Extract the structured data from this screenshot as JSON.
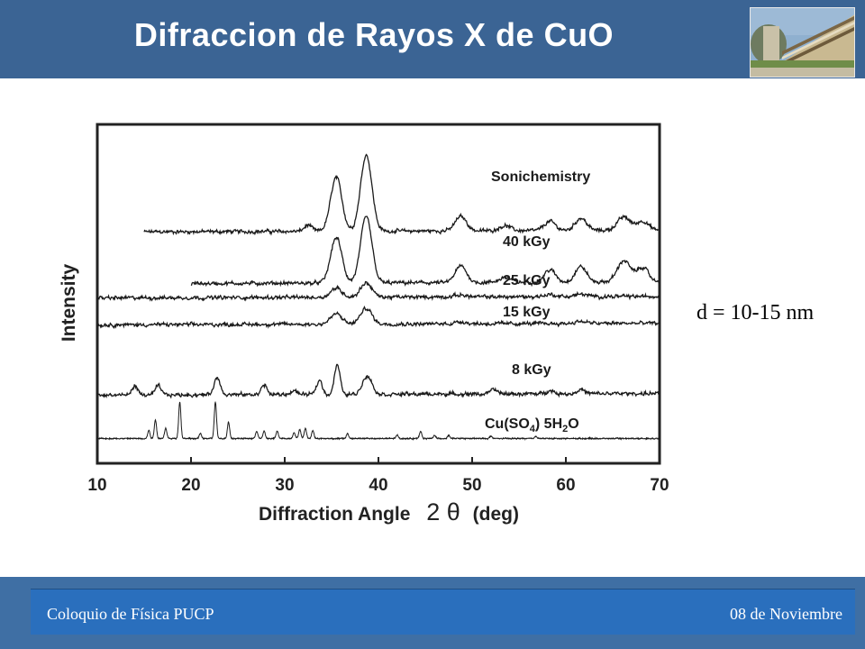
{
  "header": {
    "title": "Difraccion de Rayos X de CuO"
  },
  "annotation": {
    "text": "d = 10-15 nm"
  },
  "footer": {
    "left": "Coloquio de Física PUCP",
    "right": "08 de Noviembre"
  },
  "colors": {
    "header": "#3b6494",
    "footer": "#2a6fbd",
    "trace": "#1a1a1a"
  },
  "chart_data": {
    "type": "line",
    "xlabel": "Diffraction Angle",
    "xlabel_symbol": "2 θ",
    "xlabel_unit": "(deg)",
    "ylabel": "Intensity",
    "xlim": [
      10,
      70
    ],
    "x_ticks": [
      10,
      20,
      30,
      40,
      50,
      60,
      70
    ],
    "y_ticks_shown": false,
    "grid": false,
    "series": [
      {
        "name": "Sonichemistry",
        "x_range": [
          15,
          70
        ],
        "baseline": 5.0,
        "peaks": [
          [
            32.5,
            0.15,
            0.4
          ],
          [
            35.5,
            1.3,
            0.6
          ],
          [
            38.7,
            1.85,
            0.6
          ],
          [
            48.8,
            0.35,
            0.6
          ],
          [
            53.5,
            0.12,
            0.6
          ],
          [
            58.3,
            0.22,
            0.6
          ],
          [
            61.6,
            0.3,
            0.6
          ],
          [
            66.2,
            0.32,
            0.7
          ],
          [
            68.2,
            0.22,
            0.6
          ]
        ]
      },
      {
        "name": "40 kGy",
        "x_range": [
          20,
          70
        ],
        "baseline": 3.75,
        "peaks": [
          [
            35.5,
            1.1,
            0.6
          ],
          [
            38.7,
            1.6,
            0.6
          ],
          [
            48.8,
            0.4,
            0.6
          ],
          [
            53.5,
            0.12,
            0.6
          ],
          [
            58.3,
            0.3,
            0.6
          ],
          [
            61.6,
            0.38,
            0.6
          ],
          [
            66.2,
            0.52,
            0.7
          ],
          [
            68.2,
            0.35,
            0.6
          ]
        ]
      },
      {
        "name": "25 kGy",
        "x_range": [
          10,
          70
        ],
        "baseline": 3.4,
        "peaks": [
          [
            35.5,
            0.22,
            0.6
          ],
          [
            38.7,
            0.35,
            0.6
          ],
          [
            48.8,
            0.05,
            0.6
          ],
          [
            58.3,
            0.05,
            0.6
          ],
          [
            61.6,
            0.06,
            0.6
          ]
        ]
      },
      {
        "name": "15 kGy",
        "x_range": [
          10,
          70
        ],
        "baseline": 2.75,
        "peaks": [
          [
            35.5,
            0.25,
            0.6
          ],
          [
            38.7,
            0.38,
            0.6
          ],
          [
            48.8,
            0.05,
            0.6
          ],
          [
            61.6,
            0.05,
            0.6
          ]
        ]
      },
      {
        "name": "8 kGy",
        "x_range": [
          10,
          70
        ],
        "baseline": 1.05,
        "peaks": [
          [
            14.0,
            0.22,
            0.3
          ],
          [
            16.5,
            0.22,
            0.3
          ],
          [
            22.8,
            0.4,
            0.35
          ],
          [
            27.8,
            0.24,
            0.3
          ],
          [
            31.0,
            0.1,
            0.3
          ],
          [
            33.7,
            0.35,
            0.3
          ],
          [
            35.6,
            0.72,
            0.3
          ],
          [
            38.8,
            0.45,
            0.5
          ],
          [
            52.3,
            0.1,
            0.4
          ],
          [
            58.3,
            0.08,
            0.4
          ],
          [
            61.6,
            0.1,
            0.4
          ]
        ]
      },
      {
        "name": "Cu(SO4) 5H2O",
        "x_range": [
          10,
          70
        ],
        "baseline": 0.0,
        "peaks": [
          [
            15.5,
            0.2,
            0.12
          ],
          [
            16.2,
            0.45,
            0.12
          ],
          [
            17.3,
            0.25,
            0.12
          ],
          [
            18.8,
            0.88,
            0.12
          ],
          [
            21.0,
            0.12,
            0.12
          ],
          [
            22.6,
            0.88,
            0.12
          ],
          [
            24.0,
            0.4,
            0.12
          ],
          [
            27.0,
            0.18,
            0.12
          ],
          [
            27.8,
            0.18,
            0.12
          ],
          [
            29.2,
            0.18,
            0.12
          ],
          [
            31.0,
            0.15,
            0.12
          ],
          [
            31.6,
            0.22,
            0.12
          ],
          [
            32.2,
            0.25,
            0.12
          ],
          [
            33.0,
            0.2,
            0.12
          ],
          [
            36.7,
            0.12,
            0.12
          ],
          [
            42.0,
            0.08,
            0.12
          ],
          [
            44.5,
            0.18,
            0.12
          ],
          [
            46.0,
            0.08,
            0.12
          ],
          [
            47.5,
            0.08,
            0.12
          ],
          [
            52.0,
            0.06,
            0.12
          ],
          [
            56.8,
            0.06,
            0.12
          ]
        ]
      }
    ]
  }
}
